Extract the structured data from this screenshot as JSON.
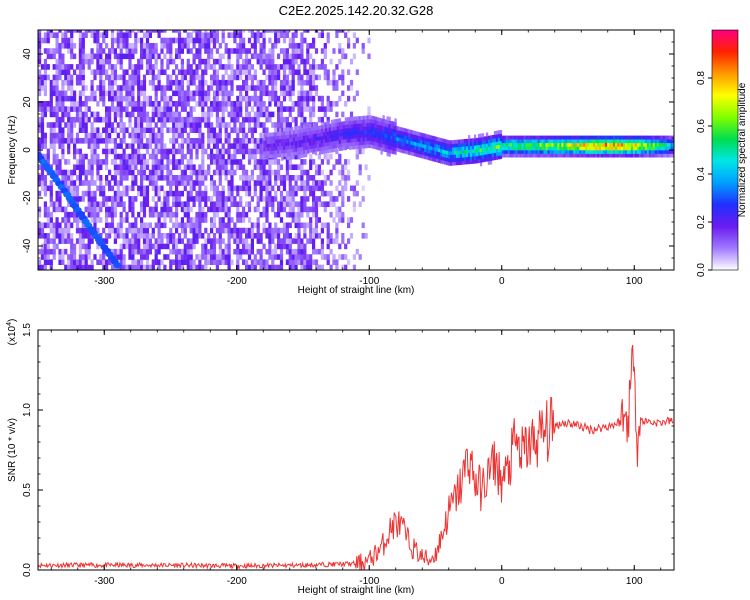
{
  "title": "C2E2.2025.142.20.32.G28",
  "chart_data": [
    {
      "type": "heatmap",
      "name": "spectrogram",
      "xlabel": "Height of straight line (km)",
      "ylabel": "Frequency (Hz)",
      "xlim": [
        -350,
        130
      ],
      "ylim": [
        -50,
        50
      ],
      "x_ticks": [
        -300,
        -200,
        -100,
        0,
        100
      ],
      "x_tick_labels": [
        "-300",
        "-200",
        "-100",
        "0",
        "100"
      ],
      "y_ticks": [
        -40,
        -20,
        0,
        20,
        40
      ],
      "y_tick_labels": [
        "-40",
        "-20",
        "0",
        "20",
        "40"
      ],
      "colorbar": {
        "label": "Normalized spectral amplitude",
        "range": [
          0,
          1
        ],
        "ticks": [
          0.0,
          0.2,
          0.4,
          0.6,
          0.8
        ],
        "tick_labels": [
          "0.0",
          "0.2",
          "0.4",
          "0.6",
          "0.8"
        ],
        "colormap": [
          "#ffffff",
          "#a078ff",
          "#6a1cf0",
          "#2030ff",
          "#00a0ff",
          "#00e6e6",
          "#00dd50",
          "#80ff00",
          "#ffff00",
          "#ff9900",
          "#ff2200",
          "#ff0080"
        ]
      },
      "noise_region": {
        "x_range": [
          -350,
          -100
        ],
        "y_range": [
          -50,
          50
        ],
        "level": 0.18
      },
      "diagonal_trace": {
        "x": [
          -350,
          -330,
          -310,
          -290
        ],
        "y": [
          -2,
          -17,
          -33,
          -48
        ],
        "level": 0.28
      },
      "main_trace": {
        "x": [
          -180,
          -160,
          -140,
          -120,
          -100,
          -80,
          -60,
          -40,
          -20,
          0,
          20,
          40,
          60,
          80,
          100,
          130
        ],
        "y": [
          1,
          2,
          4,
          6,
          7,
          4,
          1,
          -2,
          -1,
          1,
          1,
          1,
          1,
          1,
          1,
          1
        ],
        "level": [
          0.18,
          0.2,
          0.22,
          0.25,
          0.28,
          0.35,
          0.4,
          0.45,
          0.55,
          0.62,
          0.68,
          0.75,
          0.85,
          0.95,
          0.9,
          0.45
        ]
      }
    },
    {
      "type": "line",
      "name": "snr",
      "xlabel": "Height of straight line (km)",
      "ylabel": "SNR (10 * v/v)",
      "y_multiplier": "(x10",
      "y_multiplier_exp": "4",
      "y_multiplier_close": ")",
      "xlim": [
        -350,
        130
      ],
      "ylim": [
        0,
        1.5
      ],
      "x_ticks": [
        -300,
        -200,
        -100,
        0,
        100
      ],
      "x_tick_labels": [
        "-300",
        "-200",
        "-100",
        "0",
        "100"
      ],
      "y_ticks": [
        0,
        0.5,
        1.0,
        1.5
      ],
      "y_tick_labels": [
        "0.0",
        "0.5",
        "1.0",
        "1.5"
      ],
      "line_color": "#ee3333",
      "series": [
        {
          "x": [
            -350,
            -300,
            -250,
            -200,
            -150,
            -110,
            -100,
            -90,
            -85,
            -80,
            -75,
            -70,
            -65,
            -60,
            -55,
            -50,
            -45,
            -40,
            -35,
            -30,
            -25,
            -20,
            -15,
            -10,
            -5,
            0,
            5,
            10,
            15,
            20,
            25,
            30,
            35,
            40,
            45,
            50,
            55,
            60,
            65,
            70,
            75,
            80,
            85,
            90,
            95,
            98,
            100,
            102,
            105,
            110,
            115,
            120,
            125,
            130
          ],
          "y": [
            0.03,
            0.03,
            0.03,
            0.025,
            0.03,
            0.04,
            0.06,
            0.15,
            0.24,
            0.3,
            0.26,
            0.17,
            0.12,
            0.08,
            0.06,
            0.1,
            0.22,
            0.36,
            0.45,
            0.55,
            0.72,
            0.55,
            0.5,
            0.6,
            0.68,
            0.55,
            0.62,
            0.8,
            0.72,
            0.78,
            0.8,
            0.85,
            0.87,
            0.9,
            0.92,
            0.92,
            0.91,
            0.9,
            0.88,
            0.88,
            0.89,
            0.9,
            0.91,
            0.93,
            0.95,
            1.2,
            1.45,
            0.8,
            0.93,
            0.93,
            0.92,
            0.92,
            0.93,
            0.93
          ]
        }
      ]
    }
  ]
}
